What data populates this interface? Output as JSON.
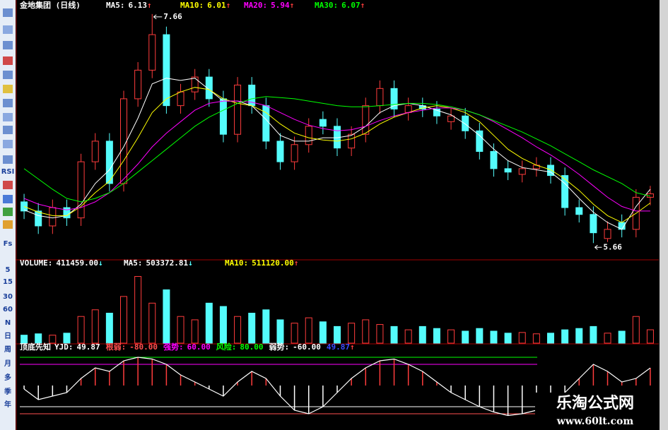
{
  "toolbar": [
    "RSI",
    "Fs",
    "5",
    "15",
    "30",
    "60",
    "N",
    "日",
    "周",
    "月",
    "多",
    "季",
    "年"
  ],
  "watermark": {
    "title": "乐淘公式网",
    "url": "www.60lt.com"
  },
  "chart_data": [
    {
      "type": "candlestick",
      "title": "金地集团 (日线)",
      "open": [
        6.02,
        5.94,
        5.81,
        5.97,
        5.88,
        6.37,
        6.55,
        6.18,
        6.92,
        7.17,
        7.48,
        6.86,
        6.98,
        7.11,
        6.92,
        6.61,
        7.04,
        6.86,
        6.55,
        6.37,
        6.52,
        6.74,
        6.68,
        6.49,
        6.61,
        6.86,
        7.01,
        6.8,
        6.86,
        6.83,
        6.72,
        6.77,
        6.64,
        6.46,
        6.31,
        6.26,
        6.31,
        6.34,
        6.25,
        5.97,
        5.91,
        5.7,
        5.84,
        5.78,
        6.06
      ],
      "high": [
        6.09,
        6.01,
        6.04,
        6.04,
        6.44,
        6.62,
        6.62,
        6.99,
        7.24,
        7.66,
        7.55,
        7.05,
        7.18,
        7.18,
        6.99,
        7.11,
        7.11,
        6.93,
        6.62,
        6.59,
        6.75,
        6.81,
        6.75,
        6.68,
        6.93,
        7.08,
        7.08,
        6.93,
        6.93,
        6.9,
        6.84,
        6.84,
        6.71,
        6.53,
        6.38,
        6.38,
        6.41,
        6.41,
        6.32,
        6.04,
        5.98,
        5.85,
        5.91,
        6.13,
        6.16
      ],
      "low": [
        5.87,
        5.74,
        5.74,
        5.81,
        5.81,
        6.3,
        6.11,
        6.11,
        6.85,
        7.1,
        6.79,
        6.79,
        6.91,
        6.85,
        6.54,
        6.54,
        6.79,
        6.48,
        6.3,
        6.3,
        6.45,
        6.61,
        6.42,
        6.42,
        6.54,
        6.79,
        6.76,
        6.73,
        6.76,
        6.7,
        6.65,
        6.57,
        6.39,
        6.24,
        6.21,
        6.19,
        6.24,
        6.18,
        5.9,
        5.84,
        5.66,
        5.67,
        5.71,
        5.71,
        5.99
      ],
      "close": [
        5.94,
        5.81,
        5.97,
        5.88,
        6.37,
        6.55,
        6.18,
        6.92,
        7.17,
        7.48,
        6.86,
        6.98,
        7.11,
        6.92,
        6.61,
        7.04,
        6.86,
        6.55,
        6.37,
        6.52,
        6.68,
        6.68,
        6.49,
        6.61,
        6.86,
        7.01,
        6.83,
        6.86,
        6.83,
        6.77,
        6.77,
        6.64,
        6.46,
        6.31,
        6.28,
        6.31,
        6.34,
        6.25,
        5.97,
        5.91,
        5.75,
        5.78,
        5.78,
        6.06,
        6.09
      ],
      "up_color": "#ff3c3c",
      "down_color": "#54fcfc",
      "ylim": [
        5.52,
        7.69
      ],
      "series": [
        {
          "name": "MA5:",
          "current": "6.13",
          "trend": "↑",
          "color": "#ffffff",
          "values": [
            5.95,
            5.9,
            5.88,
            5.9,
            6.0,
            6.18,
            6.3,
            6.5,
            6.75,
            7.05,
            7.1,
            7.08,
            7.1,
            7.0,
            6.9,
            6.9,
            6.86,
            6.74,
            6.6,
            6.55,
            6.55,
            6.58,
            6.58,
            6.6,
            6.68,
            6.8,
            6.86,
            6.88,
            6.86,
            6.82,
            6.78,
            6.7,
            6.6,
            6.48,
            6.38,
            6.32,
            6.3,
            6.28,
            6.18,
            6.05,
            5.93,
            5.84,
            5.78,
            5.98,
            6.13
          ]
        },
        {
          "name": "MA10:",
          "current": "6.01",
          "trend": "↑",
          "color": "#ffff00",
          "values": [
            5.98,
            5.93,
            5.9,
            5.9,
            5.98,
            6.1,
            6.2,
            6.38,
            6.58,
            6.8,
            6.92,
            6.98,
            7.02,
            7.0,
            6.92,
            6.88,
            6.86,
            6.8,
            6.7,
            6.62,
            6.58,
            6.56,
            6.55,
            6.57,
            6.62,
            6.7,
            6.76,
            6.8,
            6.84,
            6.86,
            6.84,
            6.8,
            6.72,
            6.6,
            6.48,
            6.4,
            6.34,
            6.3,
            6.22,
            6.12,
            6.0,
            5.9,
            5.84,
            5.92,
            6.01
          ]
        },
        {
          "name": "MA20:",
          "current": "5.94",
          "trend": "↑",
          "color": "#ff00ff",
          "values": [
            6.05,
            6.0,
            5.97,
            5.95,
            5.97,
            6.02,
            6.1,
            6.22,
            6.35,
            6.5,
            6.62,
            6.72,
            6.82,
            6.88,
            6.9,
            6.9,
            6.89,
            6.86,
            6.8,
            6.74,
            6.69,
            6.66,
            6.64,
            6.65,
            6.68,
            6.73,
            6.77,
            6.8,
            6.82,
            6.84,
            6.84,
            6.82,
            6.78,
            6.72,
            6.65,
            6.58,
            6.5,
            6.43,
            6.35,
            6.26,
            6.16,
            6.06,
            5.98,
            5.94,
            5.94
          ]
        },
        {
          "name": "MA30:",
          "current": "6.07",
          "trend": "↑",
          "color": "#00ff00",
          "values": [
            6.31,
            6.22,
            6.13,
            6.05,
            6.02,
            6.05,
            6.1,
            6.18,
            6.28,
            6.38,
            6.48,
            6.58,
            6.68,
            6.76,
            6.82,
            6.88,
            6.92,
            6.94,
            6.93,
            6.92,
            6.9,
            6.88,
            6.86,
            6.85,
            6.85,
            6.86,
            6.87,
            6.88,
            6.88,
            6.87,
            6.85,
            6.82,
            6.78,
            6.73,
            6.68,
            6.63,
            6.57,
            6.51,
            6.44,
            6.37,
            6.3,
            6.24,
            6.18,
            6.1,
            6.07
          ]
        }
      ]
    },
    {
      "type": "bar",
      "title": "VOLUME:",
      "current": "411459.00",
      "trend": "↓",
      "ylim": [
        0,
        2300000
      ],
      "values": [
        246000,
        287000,
        246000,
        307500,
        820000,
        1025000,
        922500,
        1435000,
        2050000,
        1230000,
        1640000,
        820000,
        717500,
        1230000,
        1127500,
        820000,
        922500,
        1025000,
        717500,
        615000,
        779000,
        656000,
        512500,
        615000,
        717500,
        574000,
        512500,
        410000,
        512500,
        451000,
        410000,
        369000,
        451000,
        369000,
        307500,
        328000,
        287000,
        307500,
        410000,
        451000,
        512500,
        307500,
        369000,
        820000,
        411459
      ],
      "legend": [
        {
          "name": "MA5:",
          "current": "503372.81",
          "trend": "↓",
          "color": "#ffffff"
        },
        {
          "name": "MA10:",
          "current": "511120.00",
          "trend": "↑",
          "color": "#ffff00"
        }
      ]
    },
    {
      "type": "line",
      "title": "顶底先知",
      "name": "YJD:",
      "current": "49.87",
      "echo": "49.87",
      "echo_trend": "↑",
      "color": "#ffffff",
      "up_color": "#ff3c3c",
      "down_color": "#ffffff",
      "ylim": [
        -100,
        100
      ],
      "values": [
        -10,
        -40,
        -30,
        -20,
        20,
        50,
        40,
        70,
        80,
        75,
        60,
        30,
        10,
        -10,
        -30,
        10,
        40,
        20,
        -30,
        -70,
        -80,
        -60,
        -20,
        20,
        50,
        70,
        75,
        60,
        40,
        10,
        -20,
        -40,
        -60,
        -75,
        -85,
        -80,
        -70,
        -50,
        -20,
        20,
        60,
        40,
        10,
        20,
        49.87
      ],
      "levels": [
        {
          "name": "根弱:",
          "value": -80,
          "label": "-80.00",
          "color": "#ff5050"
        },
        {
          "name": "强势:",
          "value": 60,
          "label": "60.00",
          "color": "#ff00ff"
        },
        {
          "name": "风险:",
          "value": 80,
          "label": "80.00",
          "color": "#00ff00"
        },
        {
          "name": "弱势:",
          "value": -60,
          "label": "-60.00",
          "color": "#ffffff"
        }
      ]
    }
  ]
}
